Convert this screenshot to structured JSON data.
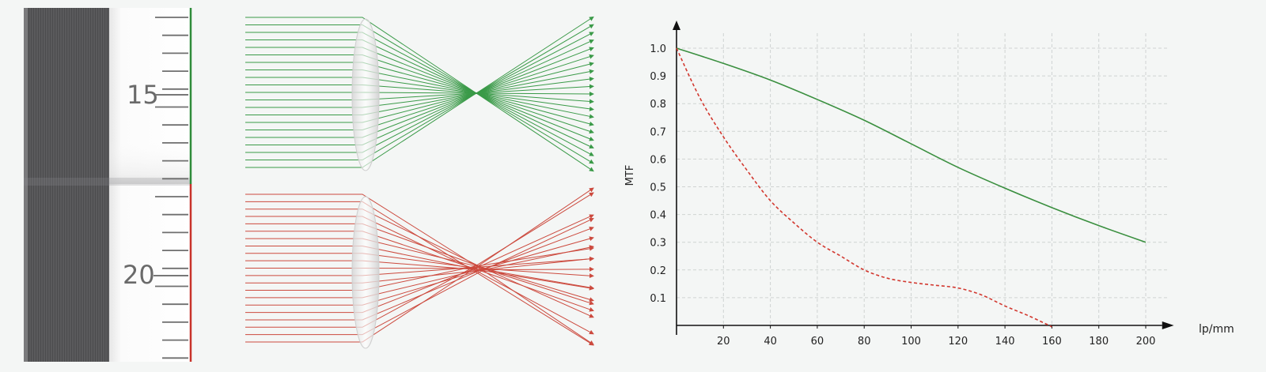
{
  "ruler": {
    "labels": [
      "15",
      "20"
    ],
    "top_color": "#2e8b3a",
    "bottom_color": "#c8322a"
  },
  "rays": {
    "top_color": "#3a9a48",
    "bottom_color": "#cc4a3e",
    "top_label": "",
    "bottom_label": ""
  },
  "chart_data": {
    "type": "line",
    "title": "",
    "xlabel": "lp/mm",
    "ylabel": "MTF",
    "xlim": [
      0,
      210
    ],
    "ylim": [
      0,
      1.05
    ],
    "xticks": [
      20,
      40,
      60,
      80,
      100,
      120,
      140,
      160,
      180,
      200
    ],
    "yticks": [
      0.1,
      0.2,
      0.3,
      0.4,
      0.5,
      0.6,
      0.7,
      0.8,
      0.9,
      1.0
    ],
    "grid": true,
    "series": [
      {
        "style": "solid",
        "color": "#3a8f3f",
        "x": [
          0,
          20,
          40,
          60,
          80,
          100,
          120,
          140,
          160,
          180,
          200
        ],
        "y": [
          1.0,
          0.945,
          0.885,
          0.815,
          0.74,
          0.655,
          0.57,
          0.495,
          0.425,
          0.36,
          0.3
        ]
      },
      {
        "style": "dashed",
        "color": "#d2382f",
        "x": [
          0,
          10,
          20,
          30,
          40,
          50,
          60,
          70,
          80,
          90,
          100,
          110,
          120,
          130,
          140,
          150,
          160
        ],
        "y": [
          1.0,
          0.82,
          0.68,
          0.56,
          0.45,
          0.37,
          0.3,
          0.25,
          0.2,
          0.17,
          0.155,
          0.145,
          0.135,
          0.11,
          0.07,
          0.035,
          -0.005
        ]
      }
    ]
  }
}
